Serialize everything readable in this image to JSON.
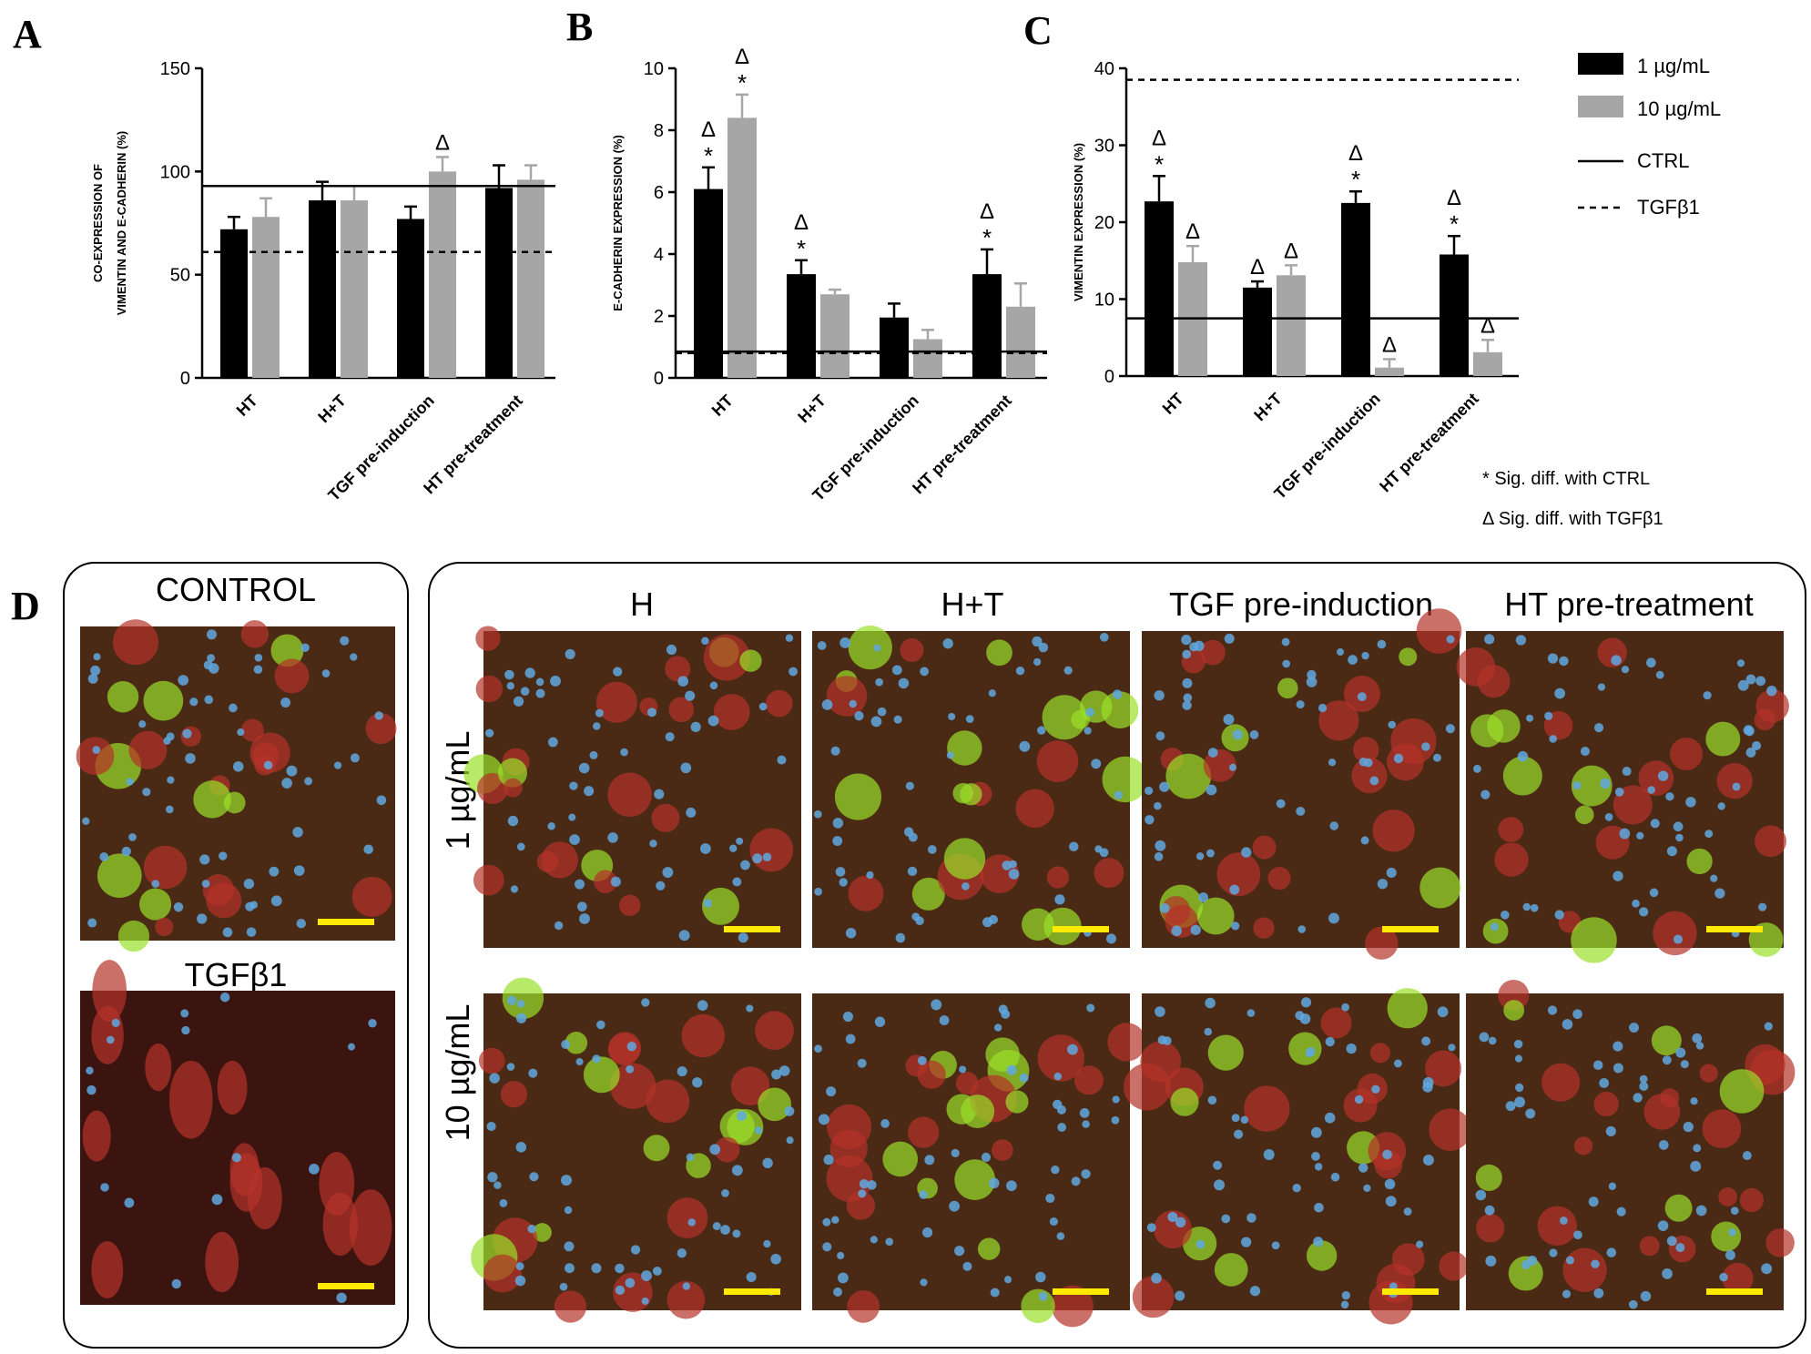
{
  "colors": {
    "dark": "#000000",
    "light": "#a6a6a6",
    "scalebar": "#ffea00",
    "cell_red": "#b5322a",
    "cell_green": "#9adf2a",
    "nucleus": "#5fa8e0",
    "background_dark": "#2e1a12"
  },
  "panel_labels": {
    "a": "A",
    "b": "B",
    "c": "C",
    "d": "D"
  },
  "legend": {
    "series1": "1  µg/mL",
    "series2": "10  µg/mL",
    "ctrl": "CTRL",
    "tgf": "TGFβ1",
    "note_star": "* Sig. diff. with CTRL",
    "note_delta": "Δ Sig. diff. with TGFβ1"
  },
  "chart_data": [
    {
      "id": "A",
      "type": "bar",
      "ylabel_line1": "CO-EXPRESSION OF",
      "ylabel_line2": "VIMENTIN AND E-CADHERIN (%)",
      "categories": [
        "HT",
        "H+T",
        "TGF pre-induction",
        "HT pre-treatment"
      ],
      "series": [
        {
          "name": "1  µg/mL",
          "values": [
            72,
            86,
            77,
            92
          ],
          "errors": [
            6,
            9,
            6,
            11
          ],
          "marks": [
            "",
            "",
            "",
            ""
          ]
        },
        {
          "name": "10  µg/mL",
          "values": [
            78,
            86,
            100,
            96
          ],
          "errors": [
            9,
            7,
            7,
            7
          ],
          "marks": [
            "",
            "",
            "Δ",
            ""
          ]
        }
      ],
      "ctrl_line": 93,
      "tgf_line": 61,
      "ylim": [
        0,
        150
      ],
      "yticks": [
        0,
        50,
        100,
        150
      ],
      "ytick_labels": [
        "0",
        "50",
        "100",
        "150"
      ]
    },
    {
      "id": "B",
      "type": "bar",
      "ylabel_line1": "E-CADHERIN EXPRESSION (%)",
      "ylabel_line2": "",
      "categories": [
        "HT",
        "H+T",
        "TGF pre-induction",
        "HT pre-treatment"
      ],
      "series": [
        {
          "name": "1  µg/mL",
          "values": [
            6.1,
            3.35,
            1.95,
            3.35
          ],
          "errors": [
            0.7,
            0.45,
            0.45,
            0.8
          ],
          "marks": [
            "Δ*",
            "Δ*",
            "",
            "Δ*"
          ]
        },
        {
          "name": "10  µg/mL",
          "values": [
            8.4,
            2.7,
            1.25,
            2.3
          ],
          "errors": [
            0.75,
            0.15,
            0.3,
            0.75
          ],
          "marks": [
            "Δ*",
            "",
            "",
            ""
          ]
        }
      ],
      "ctrl_line": 0.85,
      "tgf_line": 0.8,
      "ylim": [
        0,
        10
      ],
      "yticks": [
        0,
        2,
        4,
        6,
        8,
        10
      ],
      "ytick_labels": [
        "0",
        "2",
        "4",
        "6",
        "8",
        "10"
      ]
    },
    {
      "id": "C",
      "type": "bar",
      "ylabel_line1": "VIMENTIN EXPRESSION  (%)",
      "ylabel_line2": "",
      "categories": [
        "HT",
        "H+T",
        "TGF pre-induction",
        "HT pre-treatment"
      ],
      "series": [
        {
          "name": "1  µg/mL",
          "values": [
            22.7,
            11.5,
            22.5,
            15.8
          ],
          "errors": [
            3.3,
            0.8,
            1.5,
            2.4
          ],
          "marks": [
            "Δ*",
            "Δ",
            "Δ*",
            "Δ*"
          ]
        },
        {
          "name": "10  µg/mL",
          "values": [
            14.8,
            13.1,
            1.1,
            3.1
          ],
          "errors": [
            2.1,
            1.3,
            1.1,
            1.6
          ],
          "marks": [
            "Δ",
            "Δ",
            "Δ",
            "Δ"
          ]
        }
      ],
      "ctrl_line": 7.5,
      "tgf_line": 38.5,
      "ylim": [
        0,
        40
      ],
      "yticks": [
        0,
        10,
        20,
        30,
        40
      ],
      "ytick_labels": [
        "0",
        "10",
        "20",
        "30",
        "40"
      ]
    }
  ],
  "panel_d": {
    "control_title": "CONTROL",
    "tgf_title": "TGFβ1",
    "columns": [
      "H",
      "H+T",
      "TGF pre-induction",
      "HT pre-treatment"
    ],
    "rows": [
      "1 µg/mL",
      "10 µg/mL"
    ]
  }
}
